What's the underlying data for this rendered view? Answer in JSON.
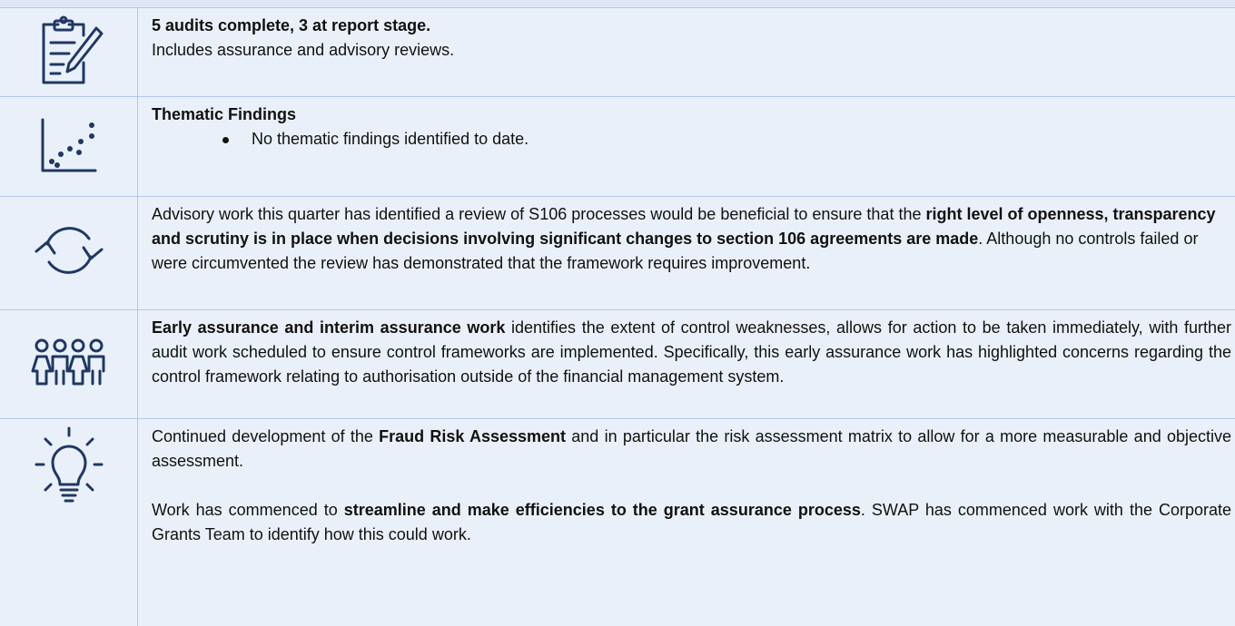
{
  "rows": [
    {
      "blocks": [
        {
          "segments": [
            {
              "text": "5 audits complete, 3 at report stage.",
              "bold": true
            }
          ]
        },
        {
          "segments": [
            {
              "text": "Includes assurance and advisory reviews."
            }
          ]
        }
      ]
    },
    {
      "blocks": [
        {
          "segments": [
            {
              "text": "Thematic Findings",
              "bold": true
            }
          ]
        },
        {
          "bullet": true,
          "segments": [
            {
              "text": "No thematic findings identified to date."
            }
          ]
        }
      ]
    },
    {
      "blocks": [
        {
          "segments": [
            {
              "text": "Advisory work this quarter has identified a review of S106 processes would be beneficial to ensure that the "
            },
            {
              "text": "right level of openness, transparency and scrutiny is in place when decisions involving significant changes to section 106 agreements are made",
              "bold": true
            },
            {
              "text": ". Although no controls failed or were circumvented the review has demonstrated that the framework requires improvement."
            }
          ]
        }
      ]
    },
    {
      "justify": true,
      "blocks": [
        {
          "segments": [
            {
              "text": "Early assurance and interim assurance work",
              "bold": true
            },
            {
              "text": " identifies the extent of control weaknesses, allows for action to be taken immediately, with further audit work scheduled to ensure control frameworks are implemented. Specifically, this early assurance work has highlighted concerns regarding the control framework relating to authorisation outside of the financial management system."
            }
          ]
        }
      ]
    },
    {
      "justify": true,
      "blocks": [
        {
          "segments": [
            {
              "text": "Continued development of the "
            },
            {
              "text": "Fraud Risk Assessment",
              "bold": true
            },
            {
              "text": " and in particular the risk assessment matrix to allow for a more measurable and objective assessment."
            }
          ]
        },
        {
          "gap": true,
          "segments": [
            {
              "text": "Work has commenced to "
            },
            {
              "text": "streamline and make efficiencies to the grant assurance process",
              "bold": true
            },
            {
              "text": ". SWAP has commenced work with the Corporate Grants Team to identify how this could work."
            }
          ]
        }
      ]
    }
  ]
}
